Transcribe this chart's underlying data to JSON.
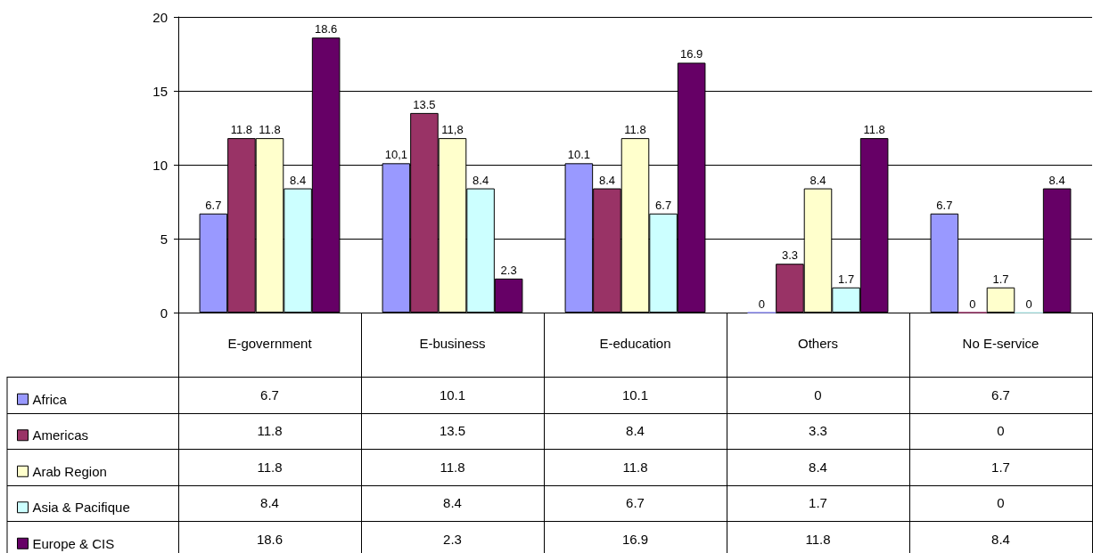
{
  "chart_data": {
    "type": "bar",
    "categories": [
      "E-government",
      "E-business",
      "E-education",
      "Others",
      "No E-service"
    ],
    "series": [
      {
        "name": "Africa",
        "color": "#9999ff",
        "values": [
          6.7,
          10.1,
          10.1,
          0,
          6.7
        ],
        "value_labels": [
          "6.7",
          "10,1",
          "10.1",
          "0",
          "6.7"
        ]
      },
      {
        "name": "Americas",
        "color": "#993366",
        "values": [
          11.8,
          13.5,
          8.4,
          3.3,
          0
        ],
        "value_labels": [
          "11.8",
          "13.5",
          "8.4",
          "3.3",
          "0"
        ]
      },
      {
        "name": "Arab Region",
        "color": "#ffffcc",
        "values": [
          11.8,
          11.8,
          11.8,
          8.4,
          1.7
        ],
        "value_labels": [
          "11.8",
          "11,8",
          "11.8",
          "8.4",
          "1.7"
        ]
      },
      {
        "name": "Asia & Pacifique",
        "color": "#ccffff",
        "values": [
          8.4,
          8.4,
          6.7,
          1.7,
          0
        ],
        "value_labels": [
          "8.4",
          "8.4",
          "6.7",
          "1.7",
          "0"
        ]
      },
      {
        "name": "Europe & CIS",
        "color": "#660066",
        "values": [
          18.6,
          2.3,
          16.9,
          11.8,
          8.4
        ],
        "value_labels": [
          "18.6",
          "2.3",
          "16.9",
          "11.8",
          "8.4"
        ]
      }
    ],
    "annotations": [
      "6.7",
      "10.1",
      "10.1",
      "0",
      "6.7",
      "11.8",
      "13.5",
      "8.4",
      "3.3",
      "0",
      "11.8",
      "11.8",
      "11.8",
      "8.4",
      "1.7",
      "8.4",
      "8.4",
      "6.7",
      "1.7",
      "0",
      "18.6",
      "2.3",
      "16.9",
      "11.8",
      "8.4"
    ],
    "ylim": [
      0,
      20
    ],
    "yticks": [
      0,
      5,
      10,
      15,
      20
    ],
    "grid": "y",
    "legend": "bottom left"
  }
}
